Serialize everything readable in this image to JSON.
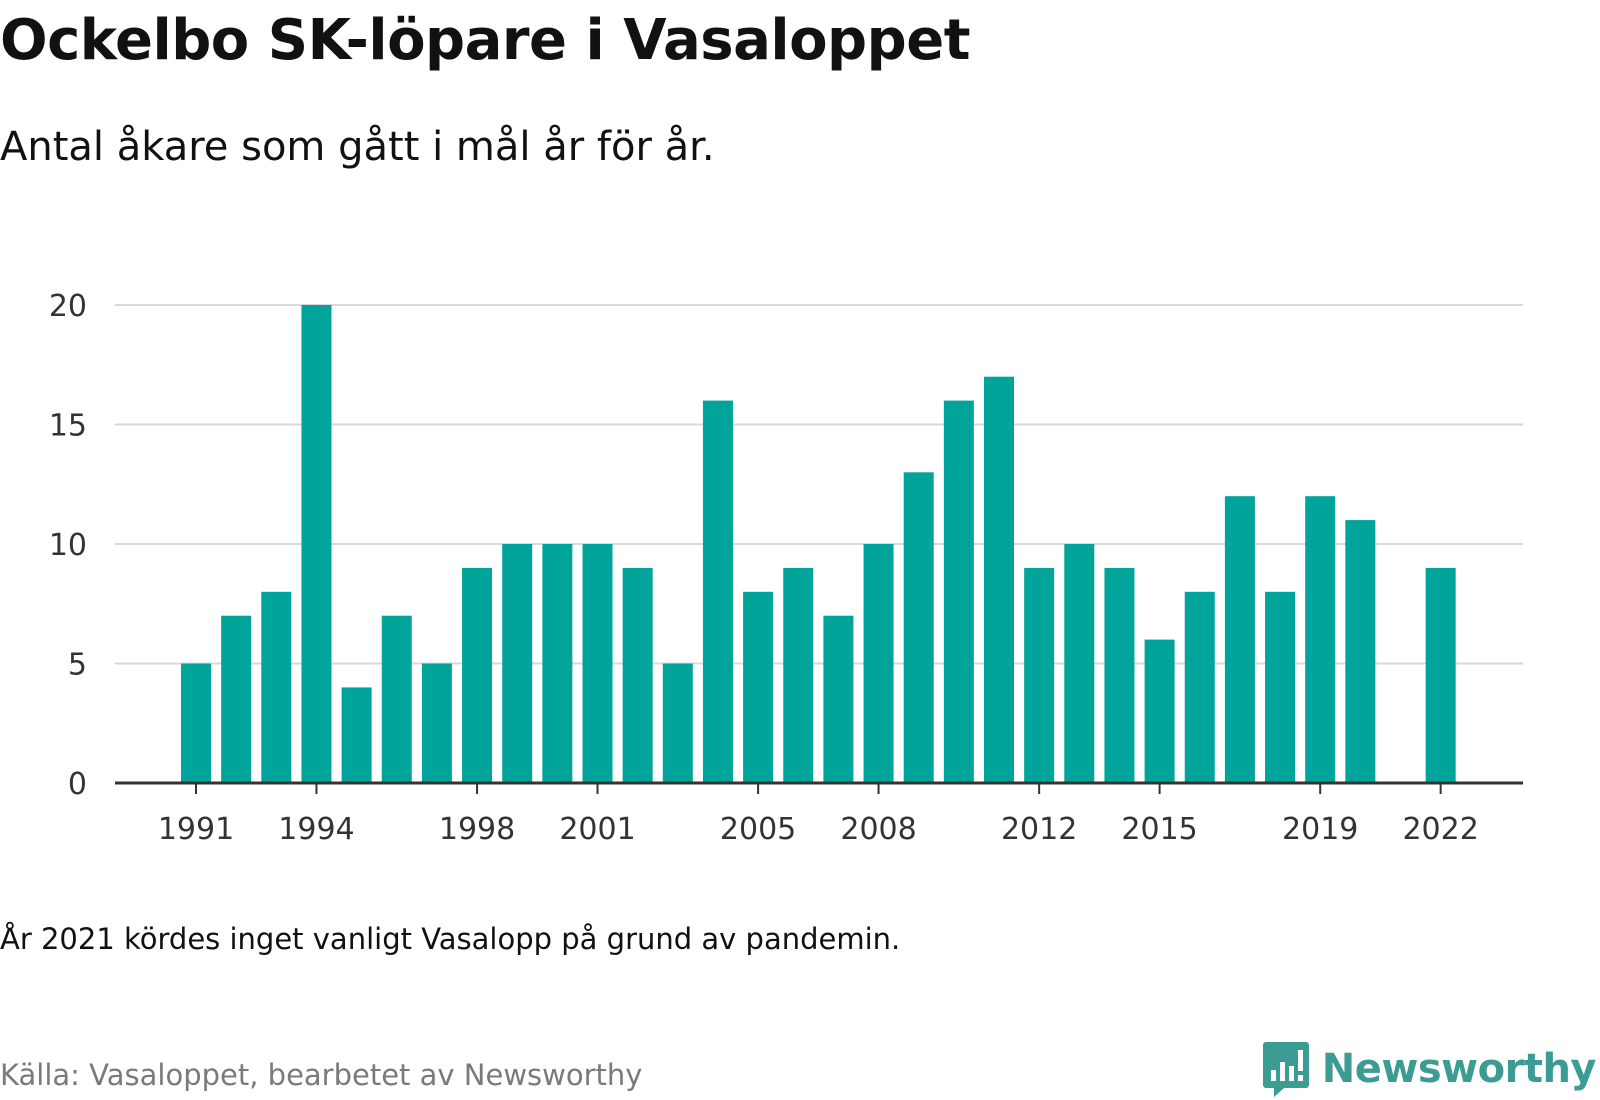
{
  "header": {
    "title": "Ockelbo SK-löpare i Vasaloppet",
    "subtitle": "Antal åkare som gått i mål år för år."
  },
  "footer": {
    "note": "År 2021 kördes inget vanligt Vasalopp på grund av pandemin.",
    "source": "Källa: Vasaloppet, bearbetet av Newsworthy",
    "logo_text": "Newsworthy",
    "logo_icon": "bar-chart-speech-bubble-icon"
  },
  "colors": {
    "bar": "#00a49a",
    "grid": "#d9d9d9",
    "axis": "#333333",
    "logo": "#3c9b93"
  },
  "chart_data": {
    "type": "bar",
    "title": "Ockelbo SK-löpare i Vasaloppet",
    "subtitle": "Antal åkare som gått i mål år för år.",
    "xlabel": "",
    "ylabel": "",
    "ylim": [
      0,
      20
    ],
    "yticks": [
      0,
      5,
      10,
      15,
      20
    ],
    "xticks": [
      1991,
      1994,
      1998,
      2001,
      2005,
      2008,
      2012,
      2015,
      2019,
      2022
    ],
    "grid": true,
    "categories": [
      1991,
      1992,
      1993,
      1994,
      1995,
      1996,
      1997,
      1998,
      1999,
      2000,
      2001,
      2002,
      2003,
      2004,
      2005,
      2006,
      2007,
      2008,
      2009,
      2010,
      2011,
      2012,
      2013,
      2014,
      2015,
      2016,
      2017,
      2018,
      2019,
      2020,
      2021,
      2022
    ],
    "values": [
      5,
      7,
      8,
      20,
      4,
      7,
      5,
      9,
      10,
      10,
      10,
      9,
      5,
      16,
      8,
      9,
      7,
      10,
      13,
      16,
      17,
      9,
      10,
      9,
      6,
      8,
      12,
      8,
      12,
      11,
      null,
      9
    ]
  }
}
